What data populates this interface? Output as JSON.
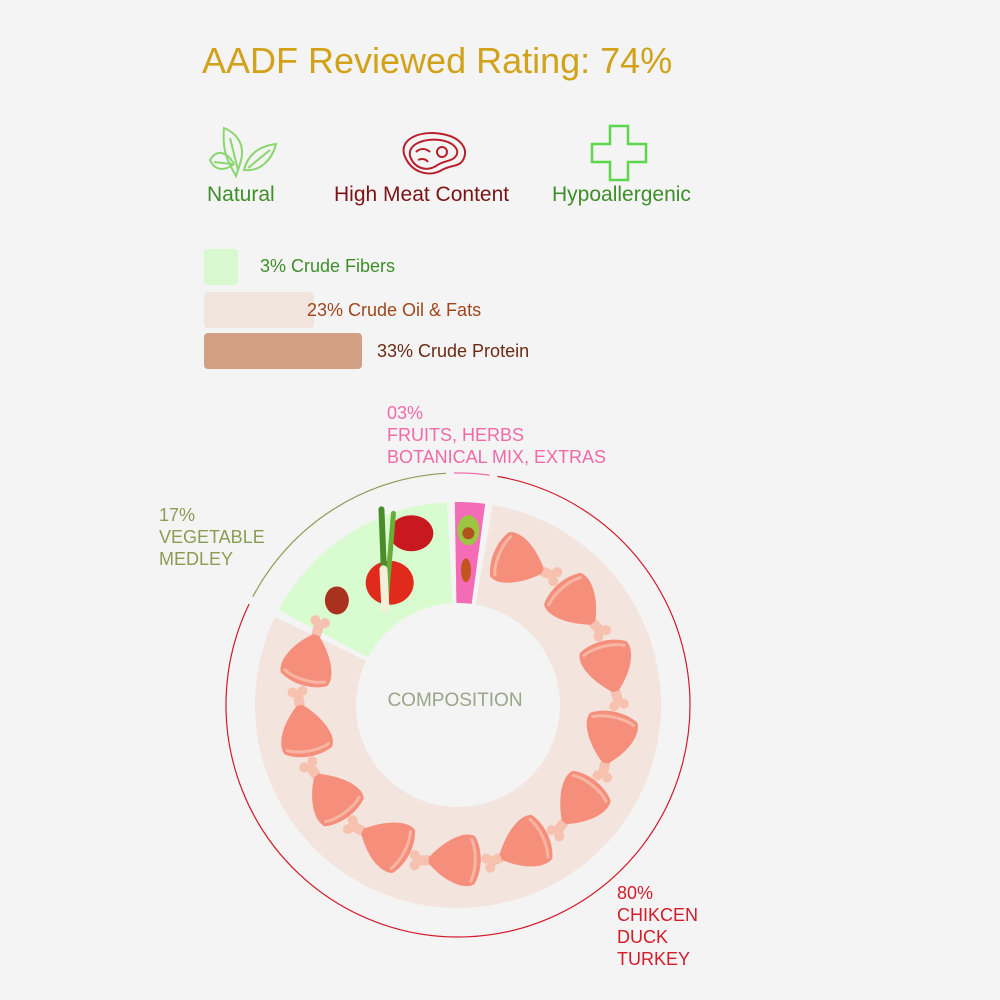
{
  "title": "AADF Reviewed Rating: 74%",
  "badges": [
    {
      "label": "Natural",
      "icon": "leaves-icon",
      "color": "#3e8e2a",
      "icon_color": "#8bd66f"
    },
    {
      "label": "High Meat Content",
      "icon": "meat-steak-icon",
      "color": "#7a1414",
      "icon_color": "#b8202c"
    },
    {
      "label": "Hypoallergenic",
      "icon": "plus-cross-icon",
      "color": "#3e8e2a",
      "icon_color": "#5cd64a"
    }
  ],
  "nutrients": [
    {
      "label": "3% Crude Fibers",
      "percent": 3,
      "color": "#d8f8d0",
      "text_color": "#3e8e2a"
    },
    {
      "label": "23% Crude Oil & Fats",
      "percent": 23,
      "color": "#f0e4dc",
      "text_color": "#a0461e"
    },
    {
      "label": "33% Crude Protein",
      "percent": 33,
      "color": "#d2a084",
      "text_color": "#6a2a14"
    }
  ],
  "chart_data": {
    "type": "pie",
    "title": "COMPOSITION",
    "slices": [
      {
        "percent_label": "03%",
        "lines": [
          "FRUITS, HERBS",
          "BOTANICAL MIX, EXTRAS"
        ],
        "value": 3,
        "color": "#f56cb6",
        "text_color": "#f06aa8"
      },
      {
        "percent_label": "80%",
        "lines": [
          "CHIKCEN",
          "DUCK",
          "TURKEY"
        ],
        "value": 80,
        "color": "#f3e4dd",
        "text_color": "#d21c2a"
      },
      {
        "percent_label": "17%",
        "lines": [
          "VEGETABLE",
          "MEDLEY"
        ],
        "value": 17,
        "color": "#d8fcd0",
        "text_color": "#8d9b53"
      }
    ]
  }
}
